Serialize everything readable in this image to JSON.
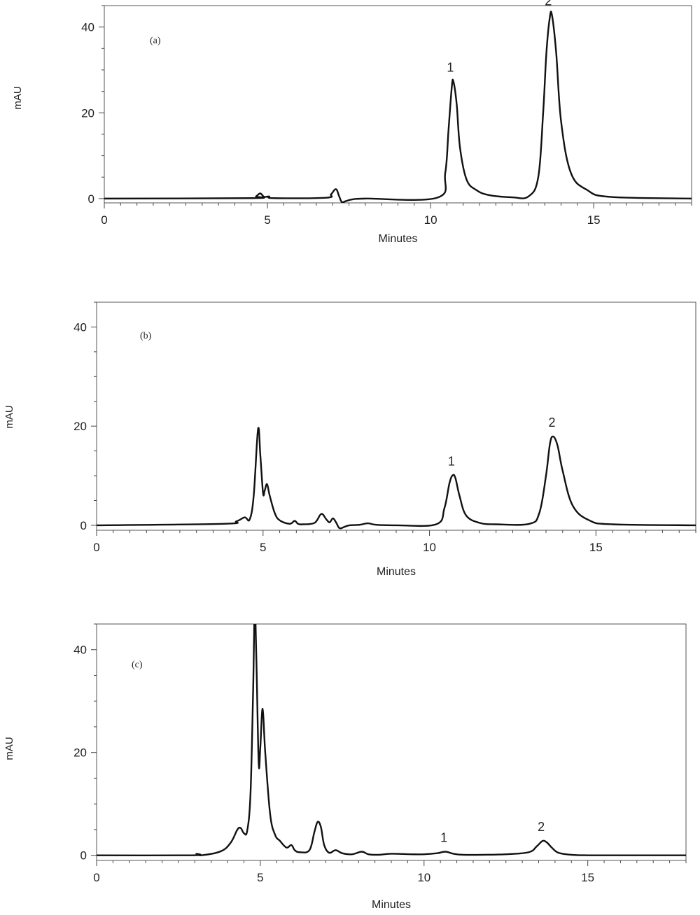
{
  "chart_data": [
    {
      "type": "line",
      "panel_label": "(a)",
      "xlabel": "Minutes",
      "ylabel": "mAU",
      "xlim": [
        0,
        18
      ],
      "ylim": [
        -1,
        45
      ],
      "xticks": [
        0,
        5,
        10,
        15
      ],
      "yticks": [
        0,
        20,
        40
      ],
      "grid": false,
      "series": [
        {
          "x": [
            0,
            4.5,
            4.65,
            4.78,
            4.9,
            5.05,
            5.2,
            6.8,
            6.95,
            7.1,
            7.2,
            7.28,
            7.4,
            7.6,
            8.0,
            10.2,
            10.45,
            10.55,
            10.65,
            10.7,
            10.8,
            10.9,
            11.1,
            11.4,
            11.8,
            12.5,
            13.0,
            13.3,
            13.45,
            13.55,
            13.65,
            13.72,
            13.85,
            14.0,
            14.3,
            14.8,
            15.5,
            18.0
          ],
          "y": [
            0,
            0.1,
            0.5,
            1.2,
            0.4,
            0.5,
            0.1,
            0.2,
            1.0,
            2.2,
            0.5,
            -0.8,
            -0.6,
            -0.2,
            0,
            0.2,
            6.0,
            16.0,
            26.0,
            27.3,
            22.0,
            12.0,
            4.5,
            2.0,
            0.8,
            0.3,
            0.5,
            5.0,
            20.0,
            34.0,
            42.0,
            42.8,
            34.0,
            18.0,
            6.0,
            2.0,
            0.4,
            0
          ]
        }
      ],
      "annotations": [
        {
          "text": "1",
          "x": 10.65,
          "y": 27.3
        },
        {
          "text": "2",
          "x": 13.65,
          "y": 42.8
        }
      ]
    },
    {
      "type": "line",
      "panel_label": "(b)",
      "xlabel": "Minutes",
      "ylabel": "mAU",
      "xlim": [
        0,
        18
      ],
      "ylim": [
        -1,
        45
      ],
      "xticks": [
        0,
        5,
        10,
        15
      ],
      "yticks": [
        0,
        20,
        40
      ],
      "grid": false,
      "series": [
        {
          "x": [
            0,
            3.8,
            4.2,
            4.45,
            4.6,
            4.72,
            4.85,
            4.92,
            5.0,
            5.05,
            5.12,
            5.2,
            5.35,
            5.5,
            5.8,
            5.95,
            6.05,
            6.2,
            6.55,
            6.75,
            6.9,
            7.0,
            7.1,
            7.2,
            7.3,
            7.45,
            7.6,
            7.9,
            8.15,
            8.4,
            9.0,
            10.2,
            10.45,
            10.6,
            10.7,
            10.78,
            10.9,
            11.1,
            11.5,
            12.0,
            13.0,
            13.3,
            13.5,
            13.62,
            13.72,
            13.85,
            14.0,
            14.3,
            14.8,
            15.5,
            18.0
          ],
          "y": [
            0,
            0.3,
            0.8,
            1.6,
            1.2,
            6.0,
            19.4,
            14.0,
            6.5,
            7.0,
            8.3,
            6.0,
            2.5,
            1.0,
            0.3,
            0.9,
            0.3,
            0.2,
            0.5,
            2.3,
            1.2,
            0.6,
            1.4,
            0.5,
            -0.6,
            -0.3,
            0,
            0.1,
            0.4,
            0.1,
            0,
            0.2,
            3.5,
            8.5,
            10.1,
            9.5,
            6.0,
            2.0,
            0.5,
            0.2,
            0.3,
            2.5,
            10.0,
            16.5,
            17.9,
            16.0,
            11.0,
            4.0,
            1.0,
            0.2,
            0
          ]
        }
      ],
      "annotations": [
        {
          "text": "1",
          "x": 10.7,
          "y": 10.1
        },
        {
          "text": "2",
          "x": 13.72,
          "y": 17.9
        }
      ]
    },
    {
      "type": "line",
      "panel_label": "(c)",
      "xlabel": "Minutes",
      "ylabel": "mAU",
      "xlim": [
        0,
        18
      ],
      "ylim": [
        -1,
        45
      ],
      "xticks": [
        0,
        5,
        10,
        15
      ],
      "yticks": [
        0,
        20,
        40
      ],
      "grid": false,
      "series": [
        {
          "x": [
            0,
            2.9,
            3.05,
            3.2,
            3.8,
            4.1,
            4.3,
            4.4,
            4.5,
            4.6,
            4.7,
            4.78,
            4.83,
            4.88,
            4.95,
            5.0,
            5.07,
            5.15,
            5.3,
            5.45,
            5.6,
            5.8,
            5.95,
            6.05,
            6.2,
            6.5,
            6.65,
            6.75,
            6.85,
            6.95,
            7.1,
            7.3,
            7.5,
            7.8,
            8.1,
            8.3,
            8.6,
            9.0,
            9.6,
            10.0,
            10.4,
            10.65,
            10.9,
            11.2,
            11.8,
            12.5,
            13.2,
            13.45,
            13.62,
            13.75,
            13.9,
            14.1,
            14.5,
            15.0,
            16.0,
            18.0
          ],
          "y": [
            0,
            0,
            0.3,
            0,
            0.8,
            2.5,
            5.0,
            5.3,
            4.3,
            4.8,
            12.0,
            32.0,
            48.0,
            38.0,
            18.0,
            21.0,
            28.5,
            20.0,
            8.0,
            4.0,
            2.8,
            1.5,
            2.0,
            1.0,
            0.6,
            1.0,
            4.5,
            6.5,
            5.5,
            2.0,
            0.5,
            1.0,
            0.4,
            0.2,
            0.7,
            0.2,
            0.1,
            0.3,
            0.2,
            0.2,
            0.4,
            0.7,
            0.3,
            0.1,
            0.1,
            0.2,
            0.6,
            1.8,
            2.8,
            2.5,
            1.5,
            0.5,
            0.1,
            0,
            0,
            0
          ]
        }
      ],
      "annotations": [
        {
          "text": "1",
          "x": 10.65,
          "y": 0.7
        },
        {
          "text": "2",
          "x": 13.62,
          "y": 2.8
        }
      ]
    }
  ]
}
